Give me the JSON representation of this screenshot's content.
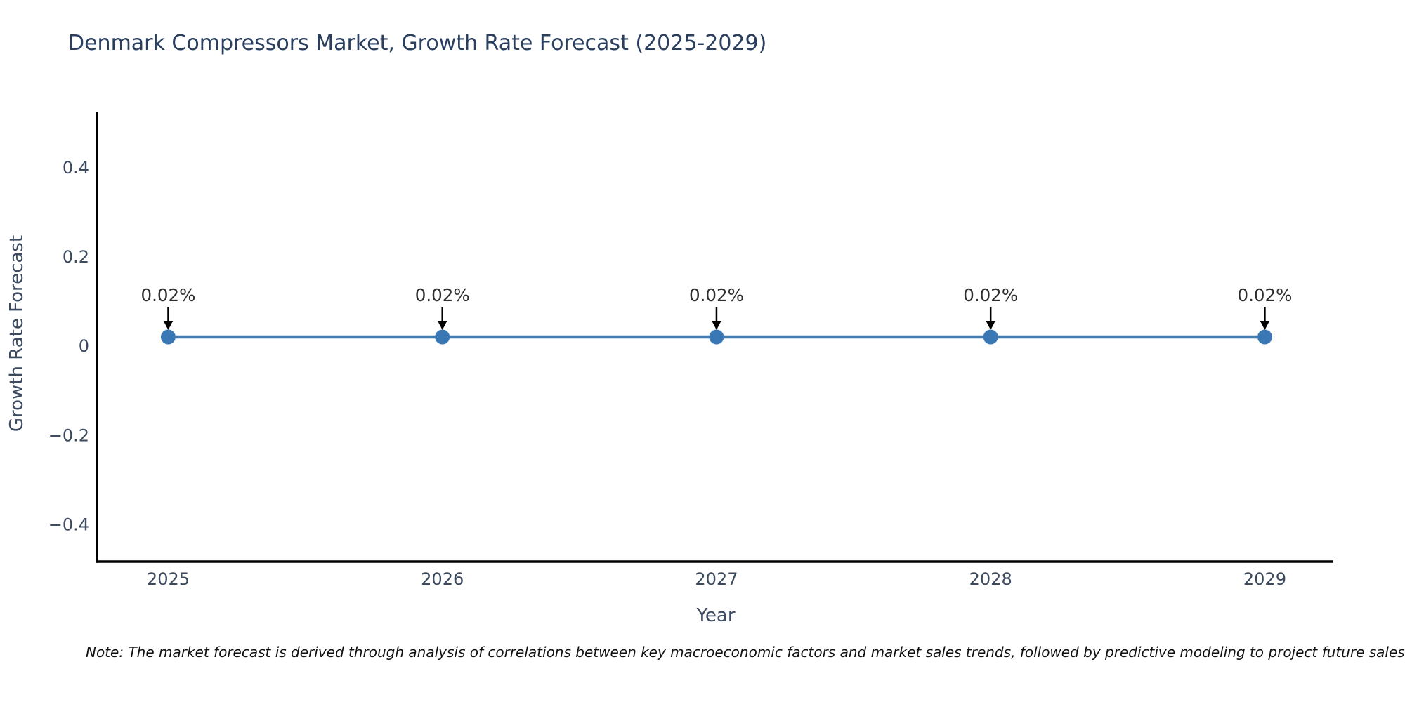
{
  "chart_data": {
    "type": "line",
    "title": "Denmark Compressors Market, Growth Rate Forecast (2025-2029)",
    "xlabel": "Year",
    "ylabel": "Growth Rate Forecast",
    "x": [
      2025,
      2026,
      2027,
      2028,
      2029
    ],
    "series": [
      {
        "name": "Growth Rate Forecast",
        "values": [
          0.02,
          0.02,
          0.02,
          0.02,
          0.02
        ]
      }
    ],
    "point_labels": [
      "0.02%",
      "0.02%",
      "0.02%",
      "0.02%",
      "0.02%"
    ],
    "xtick_labels": [
      "2025",
      "2026",
      "2027",
      "2028",
      "2029"
    ],
    "ytick_values": [
      0.4,
      0.2,
      0,
      -0.2,
      -0.4
    ],
    "ytick_labels": [
      "0.4",
      "0.2",
      "0",
      "−0.2",
      "−0.4"
    ],
    "xlim": [
      2024.74,
      2029.25
    ],
    "ylim": [
      -0.483,
      0.523
    ],
    "grid": false,
    "legend": "none",
    "colors": {
      "line": "#4a7aa8",
      "marker": "#3a78b5",
      "axis": "#000000",
      "title_text": "#2a3f5f",
      "tick_text": "#3b4a5f",
      "annotation_text": "#2e2e2e",
      "arrow": "#000000"
    }
  },
  "note": "Note: The market forecast is derived through analysis of correlations between key macroeconomic factors and market sales trends, followed by predictive modeling to project future sales trends."
}
